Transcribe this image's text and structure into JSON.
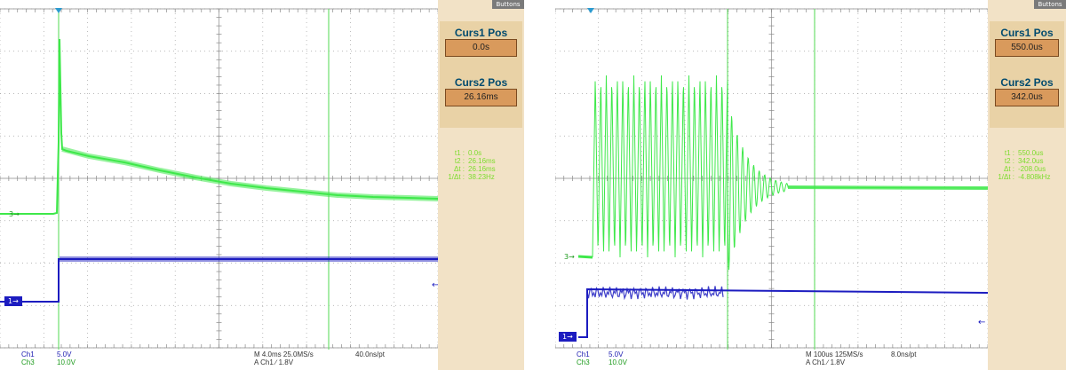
{
  "left": {
    "tab": "Buttons",
    "curs1": {
      "label": "Curs1 Pos",
      "value": "0.0s"
    },
    "curs2": {
      "label": "Curs2 Pos",
      "value": "26.16ms"
    },
    "readout": [
      {
        "k": "t1 :",
        "v": "0.0s"
      },
      {
        "k": "t2 :",
        "v": "26.16ms"
      },
      {
        "k": "Δt :",
        "v": "26.16ms"
      },
      {
        "k": "1/Δt :",
        "v": "38.23Hz"
      }
    ],
    "ch1_marker": "1",
    "ch3_marker": "3",
    "bottom": {
      "ch1": "Ch1",
      "ch1_scale": "5.0V",
      "ch3": "Ch3",
      "ch3_scale": "10.0V",
      "timebase": "M 4.0ms 25.0MS/s",
      "pt": "40.0ns/pt",
      "trigger": "A Ch1 ∕ 1.8V"
    }
  },
  "right": {
    "tab": "Buttons",
    "curs1": {
      "label": "Curs1 Pos",
      "value": "550.0us"
    },
    "curs2": {
      "label": "Curs2 Pos",
      "value": "342.0us"
    },
    "readout": [
      {
        "k": "t1 :",
        "v": "550.0us"
      },
      {
        "k": "t2 :",
        "v": "342.0us"
      },
      {
        "k": "Δt :",
        "v": "-208.0us"
      },
      {
        "k": "1/Δt :",
        "v": "-4.808kHz"
      }
    ],
    "ch1_marker": "1",
    "ch3_marker": "3",
    "bottom": {
      "ch1": "Ch1",
      "ch1_scale": "5.0V",
      "ch3": "Ch3",
      "ch3_scale": "10.0V",
      "timebase": "M 100us 125MS/s",
      "pt": "8.0ns/pt",
      "trigger": "A Ch1 ∕ 1.8V"
    }
  },
  "colors": {
    "ch3_trace": "#3ee84a",
    "ch1_trace": "#1c1cc0",
    "cursor": "#6fe06f",
    "grid": "#8a8a8a",
    "panel": "#f2e2c6"
  }
}
